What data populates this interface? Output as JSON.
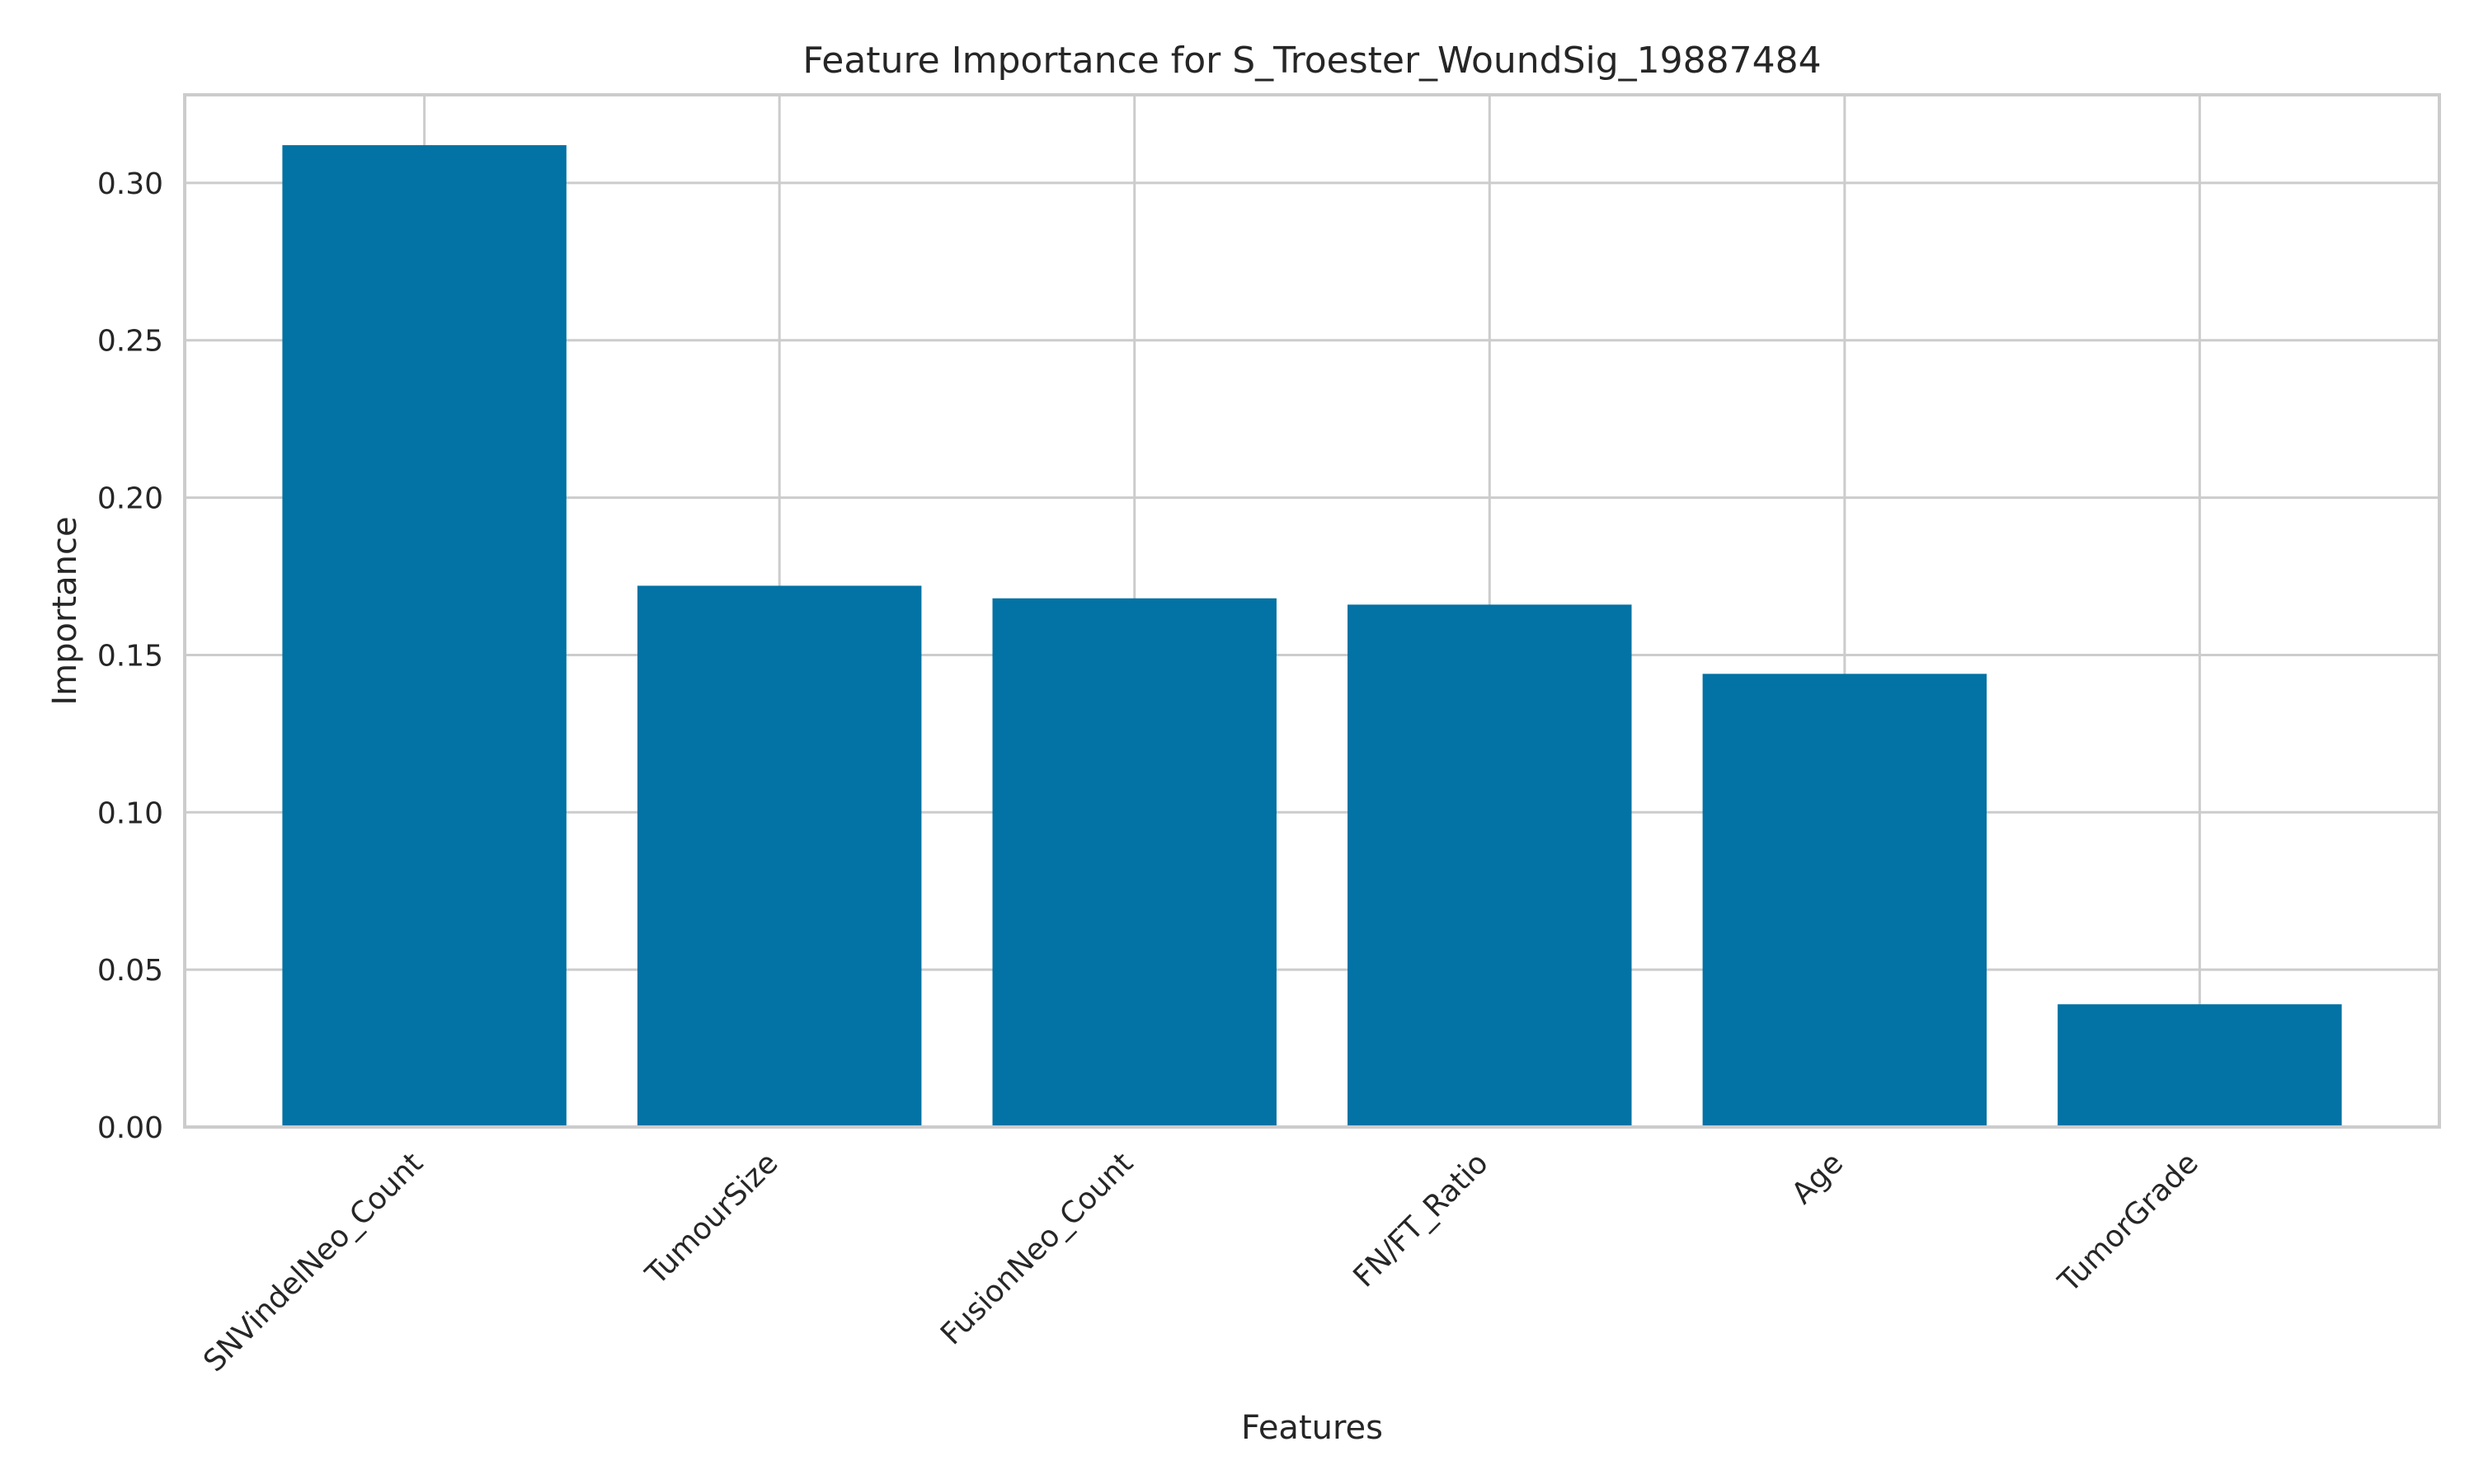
{
  "chart_data": {
    "type": "bar",
    "title": "Feature Importance for S_Troester_WoundSig_19887484",
    "xlabel": "Features",
    "ylabel": "Importance",
    "categories": [
      "SNVindelNeo_Count",
      "TumourSize",
      "FusionNeo_Count",
      "FN/FT_Ratio",
      "Age",
      "TumorGrade"
    ],
    "values": [
      0.312,
      0.172,
      0.168,
      0.166,
      0.144,
      0.039
    ],
    "ylim": [
      0,
      0.328
    ],
    "yticks": [
      0.0,
      0.05,
      0.1,
      0.15,
      0.2,
      0.25,
      0.3
    ],
    "ytick_labels": [
      "0.00",
      "0.05",
      "0.10",
      "0.15",
      "0.20",
      "0.25",
      "0.30"
    ],
    "grid": true,
    "bar_color": "#0372a4",
    "grid_color": "#cccccc",
    "text_color": "#262626"
  }
}
